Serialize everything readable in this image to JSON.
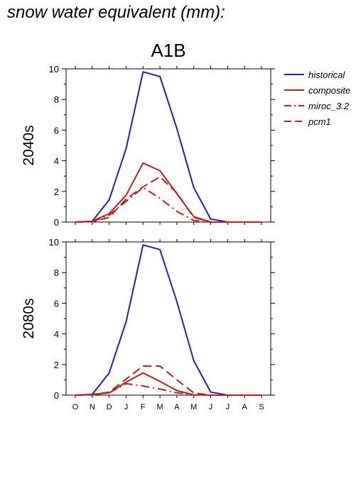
{
  "title": "snow water equivalent (mm):",
  "scenario": "A1B",
  "colors": {
    "historical": "#1f1fbf",
    "future": "#c02020"
  },
  "legend": [
    "historical",
    "composite",
    "miroc_3.2",
    "pcm1"
  ],
  "chart_data": [
    {
      "type": "line",
      "panel_label": "2040s",
      "categories": [
        "O",
        "N",
        "D",
        "J",
        "F",
        "M",
        "A",
        "M",
        "J",
        "J",
        "A",
        "S"
      ],
      "ylim": [
        0,
        10
      ],
      "yticks": [
        0,
        2,
        4,
        6,
        8,
        10
      ],
      "series": [
        {
          "name": "historical",
          "style": "solid",
          "color": "#1f1fbf",
          "values": [
            0,
            0.05,
            1.45,
            4.8,
            9.8,
            9.5,
            6.1,
            2.25,
            0.2,
            0,
            0,
            0
          ]
        },
        {
          "name": "composite",
          "style": "solid",
          "color": "#c02020",
          "values": [
            0,
            0.05,
            0.55,
            1.75,
            3.85,
            3.35,
            1.85,
            0.35,
            0,
            0,
            0,
            0
          ]
        },
        {
          "name": "miroc_3.2",
          "style": "dashdot",
          "color": "#c02020",
          "values": [
            0,
            0.02,
            0.45,
            1.35,
            2.25,
            1.55,
            0.7,
            0.1,
            0,
            0,
            0,
            0
          ]
        },
        {
          "name": "pcm1",
          "style": "dashed",
          "color": "#c02020",
          "values": [
            0,
            0.02,
            0.3,
            1.5,
            2.3,
            2.95,
            1.9,
            0.3,
            0,
            0,
            0,
            0
          ]
        }
      ]
    },
    {
      "type": "line",
      "panel_label": "2080s",
      "categories": [
        "O",
        "N",
        "D",
        "J",
        "F",
        "M",
        "A",
        "M",
        "J",
        "J",
        "A",
        "S"
      ],
      "ylim": [
        0,
        10
      ],
      "yticks": [
        0,
        2,
        4,
        6,
        8,
        10
      ],
      "series": [
        {
          "name": "historical",
          "style": "solid",
          "color": "#1f1fbf",
          "values": [
            0,
            0.05,
            1.45,
            4.8,
            9.8,
            9.5,
            6.1,
            2.25,
            0.2,
            0,
            0,
            0
          ]
        },
        {
          "name": "composite",
          "style": "solid",
          "color": "#c02020",
          "values": [
            0,
            0.05,
            0.15,
            0.85,
            1.45,
            0.9,
            0.3,
            0.02,
            0,
            0,
            0,
            0
          ]
        },
        {
          "name": "miroc_3.2",
          "style": "dashdot",
          "color": "#c02020",
          "values": [
            0,
            0.02,
            0.15,
            0.75,
            0.6,
            0.4,
            0.15,
            0.02,
            0,
            0,
            0,
            0
          ]
        },
        {
          "name": "pcm1",
          "style": "dashed",
          "color": "#c02020",
          "values": [
            0,
            0.05,
            0.2,
            1.05,
            1.9,
            1.9,
            1.0,
            0.15,
            0,
            0,
            0,
            0
          ]
        }
      ]
    }
  ]
}
